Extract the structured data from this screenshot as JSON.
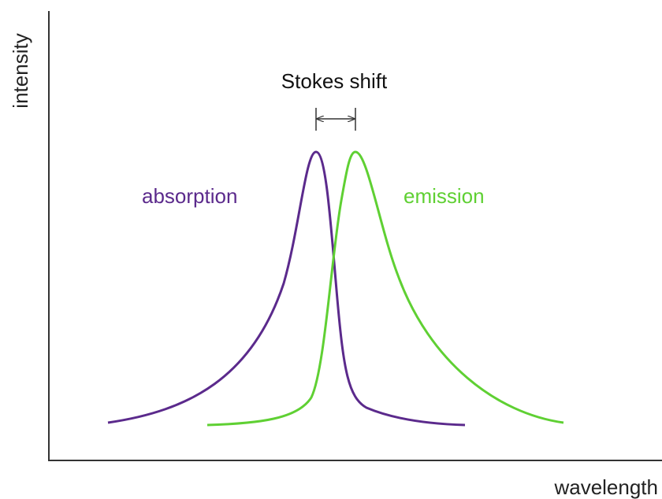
{
  "axes": {
    "y_label": "intensity",
    "x_label": "wavelength"
  },
  "annotation": "Stokes shift",
  "curves": [
    {
      "label": "absorption"
    },
    {
      "label": "emission"
    }
  ]
}
